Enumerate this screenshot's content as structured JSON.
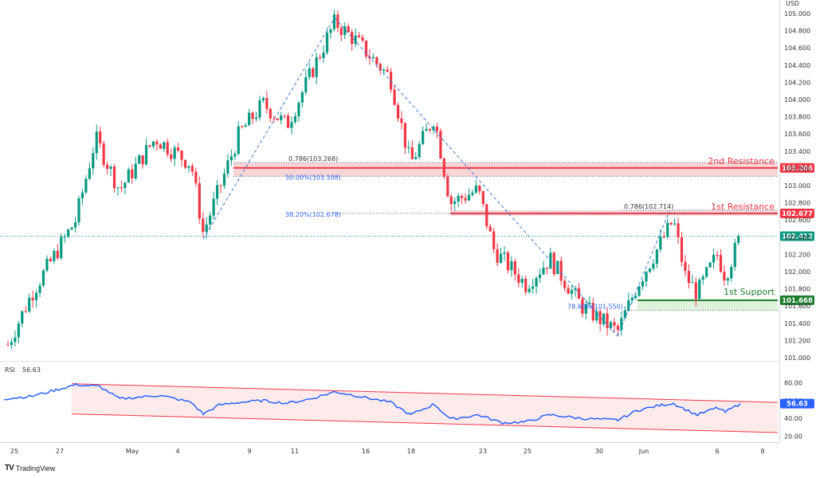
{
  "chart_data": {
    "type": "candlestick",
    "currency": "USD",
    "y_ticks": [
      "105.000",
      "104.800",
      "104.600",
      "104.400",
      "104.200",
      "104.000",
      "103.800",
      "103.600",
      "103.400",
      "103.200",
      "103.000",
      "102.800",
      "102.600",
      "102.400",
      "102.200",
      "102.000",
      "101.800",
      "101.600",
      "101.400",
      "101.200",
      "101.000"
    ],
    "ylim": [
      101.0,
      105.05
    ],
    "x_ticks": [
      "25",
      "27",
      "May",
      "4",
      "9",
      "11",
      "16",
      "18",
      "23",
      "25",
      "30",
      "Jun",
      "6",
      "8"
    ],
    "price_tags": [
      {
        "value": "103.206",
        "color": "#f23645"
      },
      {
        "value": "102.677",
        "color": "#f23645"
      },
      {
        "value": "102.412",
        "color": "#089981"
      },
      {
        "value": "101.668",
        "color": "#1b7d2c"
      }
    ],
    "levels": [
      {
        "label": "2nd Resistance",
        "price": 103.206,
        "color": "#f23645"
      },
      {
        "label": "1st Resistance",
        "price": 102.677,
        "color": "#f23645"
      },
      {
        "label": "1st Support",
        "price": 101.668,
        "color": "#1b7d2c"
      }
    ],
    "fib_labels": [
      "0.786(103.268)",
      "50.00%(103.108)",
      "38.20%(102.678)",
      "0.786(102.714)",
      "78.60%(101.550)"
    ],
    "current_price": 102.412,
    "key_points": [
      {
        "label": "low",
        "x": "25",
        "y": 101.1
      },
      {
        "label": "swing-low",
        "x": "4",
        "y": 102.38
      },
      {
        "label": "high",
        "x": "13",
        "y": 104.95
      },
      {
        "label": "low",
        "x": "31",
        "y": 101.25
      },
      {
        "label": "swing-high",
        "x": "Jun 2",
        "y": 102.7
      },
      {
        "label": "last",
        "x": "Jun 7",
        "y": 102.41
      }
    ],
    "rsi": {
      "label": "RSI",
      "value": "56.63",
      "ticks": [
        "80.00",
        "60.00",
        "40.00",
        "20.00"
      ],
      "color": "#2962ff"
    }
  },
  "brand": {
    "logo": "TV",
    "name": "TradingView"
  }
}
